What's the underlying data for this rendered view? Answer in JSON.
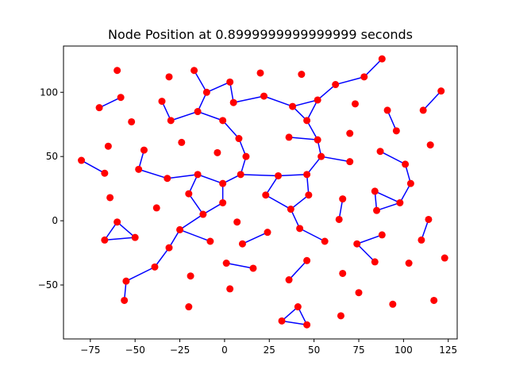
{
  "chart_data": {
    "type": "scatter",
    "title": "Node Position at 0.8999999999999999 seconds",
    "xlabel": "",
    "ylabel": "",
    "xlim": [
      -90,
      130
    ],
    "ylim": [
      -92,
      136
    ],
    "xticks": [
      -75,
      -50,
      -25,
      0,
      25,
      50,
      75,
      100,
      125
    ],
    "yticks": [
      -50,
      0,
      50,
      100
    ],
    "grid": false,
    "node_color": "#ff0000",
    "edge_color": "#0000ff",
    "nodes": [
      [
        -60,
        117
      ],
      [
        -31,
        112
      ],
      [
        20,
        115
      ],
      [
        43,
        114
      ],
      [
        -17,
        117
      ],
      [
        -10,
        100
      ],
      [
        3,
        108
      ],
      [
        -70,
        88
      ],
      [
        -58,
        96
      ],
      [
        -52,
        77
      ],
      [
        -35,
        93
      ],
      [
        -30,
        78
      ],
      [
        -15,
        85
      ],
      [
        5,
        92
      ],
      [
        -1,
        78
      ],
      [
        22,
        97
      ],
      [
        38,
        89
      ],
      [
        52,
        94
      ],
      [
        62,
        106
      ],
      [
        78,
        112
      ],
      [
        88,
        126
      ],
      [
        73,
        91
      ],
      [
        91,
        86
      ],
      [
        96,
        70
      ],
      [
        111,
        86
      ],
      [
        121,
        101
      ],
      [
        115,
        59
      ],
      [
        70,
        68
      ],
      [
        -65,
        58
      ],
      [
        -45,
        55
      ],
      [
        -24,
        61
      ],
      [
        -80,
        47
      ],
      [
        -67,
        37
      ],
      [
        -48,
        40
      ],
      [
        -32,
        33
      ],
      [
        -15,
        36
      ],
      [
        -20,
        21
      ],
      [
        -12,
        5
      ],
      [
        -1,
        14
      ],
      [
        -1,
        29
      ],
      [
        -4,
        53
      ],
      [
        8,
        64
      ],
      [
        12,
        50
      ],
      [
        9,
        36
      ],
      [
        30,
        35
      ],
      [
        36,
        65
      ],
      [
        46,
        78
      ],
      [
        52,
        63
      ],
      [
        54,
        50
      ],
      [
        70,
        46
      ],
      [
        46,
        36
      ],
      [
        47,
        20
      ],
      [
        23,
        20
      ],
      [
        37,
        9
      ],
      [
        42,
        -6
      ],
      [
        56,
        -16
      ],
      [
        87,
        54
      ],
      [
        101,
        44
      ],
      [
        104,
        29
      ],
      [
        98,
        14
      ],
      [
        85,
        8
      ],
      [
        84,
        23
      ],
      [
        66,
        17
      ],
      [
        64,
        1
      ],
      [
        -64,
        18
      ],
      [
        -38,
        10
      ],
      [
        -60,
        -1
      ],
      [
        -67,
        -15
      ],
      [
        -50,
        -13
      ],
      [
        -25,
        -7
      ],
      [
        -31,
        -21
      ],
      [
        -39,
        -36
      ],
      [
        -55,
        -47
      ],
      [
        -56,
        -62
      ],
      [
        -8,
        -16
      ],
      [
        -19,
        -43
      ],
      [
        -20,
        -67
      ],
      [
        3,
        -53
      ],
      [
        7,
        -1
      ],
      [
        10,
        -18
      ],
      [
        24,
        -9
      ],
      [
        1,
        -33
      ],
      [
        16,
        -37
      ],
      [
        36,
        -46
      ],
      [
        46,
        -31
      ],
      [
        66,
        -41
      ],
      [
        75,
        -56
      ],
      [
        74,
        -18
      ],
      [
        88,
        -11
      ],
      [
        84,
        -32
      ],
      [
        94,
        -65
      ],
      [
        103,
        -33
      ],
      [
        110,
        -15
      ],
      [
        114,
        1
      ],
      [
        123,
        -29
      ],
      [
        117,
        -62
      ],
      [
        41,
        -67
      ],
      [
        32,
        -78
      ],
      [
        46,
        -81
      ],
      [
        65,
        -74
      ]
    ],
    "edges": [
      [
        4,
        5
      ],
      [
        5,
        6
      ],
      [
        6,
        13
      ],
      [
        5,
        12
      ],
      [
        12,
        14
      ],
      [
        13,
        15
      ],
      [
        15,
        16
      ],
      [
        16,
        17
      ],
      [
        17,
        18
      ],
      [
        18,
        19
      ],
      [
        19,
        20
      ],
      [
        7,
        8
      ],
      [
        10,
        11
      ],
      [
        11,
        12
      ],
      [
        14,
        41
      ],
      [
        41,
        42
      ],
      [
        42,
        43
      ],
      [
        43,
        44
      ],
      [
        44,
        50
      ],
      [
        16,
        46
      ],
      [
        17,
        46
      ],
      [
        46,
        47
      ],
      [
        45,
        47
      ],
      [
        47,
        48
      ],
      [
        48,
        49
      ],
      [
        48,
        50
      ],
      [
        50,
        51
      ],
      [
        51,
        53
      ],
      [
        52,
        53
      ],
      [
        52,
        44
      ],
      [
        53,
        54
      ],
      [
        54,
        55
      ],
      [
        56,
        57
      ],
      [
        57,
        58
      ],
      [
        58,
        59
      ],
      [
        59,
        60
      ],
      [
        60,
        61
      ],
      [
        59,
        61
      ],
      [
        62,
        63
      ],
      [
        31,
        32
      ],
      [
        29,
        33
      ],
      [
        33,
        34
      ],
      [
        34,
        35
      ],
      [
        35,
        36
      ],
      [
        35,
        39
      ],
      [
        36,
        37
      ],
      [
        37,
        38
      ],
      [
        38,
        39
      ],
      [
        39,
        43
      ],
      [
        37,
        69
      ],
      [
        69,
        74
      ],
      [
        69,
        70
      ],
      [
        70,
        71
      ],
      [
        71,
        72
      ],
      [
        72,
        73
      ],
      [
        66,
        67
      ],
      [
        67,
        68
      ],
      [
        66,
        68
      ],
      [
        79,
        80
      ],
      [
        81,
        82
      ],
      [
        83,
        84
      ],
      [
        87,
        88
      ],
      [
        89,
        87
      ],
      [
        92,
        93
      ],
      [
        96,
        97
      ],
      [
        97,
        98
      ],
      [
        96,
        98
      ],
      [
        24,
        25
      ],
      [
        22,
        23
      ]
    ]
  }
}
